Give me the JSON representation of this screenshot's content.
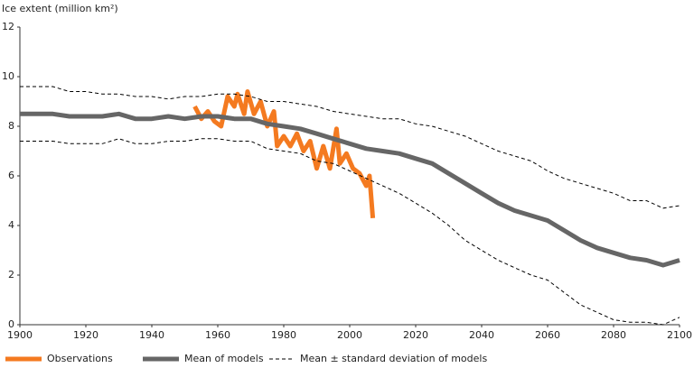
{
  "chart_data": {
    "type": "line",
    "y_label": "Ice extent (million km²)",
    "xlim": [
      1900,
      2100
    ],
    "xticks": [
      1900,
      1920,
      1940,
      1960,
      1980,
      2000,
      2020,
      2040,
      2060,
      2080,
      2100
    ],
    "ylim": [
      0,
      12
    ],
    "yticks": [
      0,
      2,
      4,
      6,
      8,
      10,
      12
    ],
    "grid": false,
    "x": [
      1900,
      1905,
      1910,
      1915,
      1920,
      1925,
      1930,
      1935,
      1940,
      1945,
      1950,
      1955,
      1960,
      1965,
      1970,
      1975,
      1980,
      1985,
      1990,
      1995,
      2000,
      2005,
      2010,
      2015,
      2020,
      2025,
      2030,
      2035,
      2040,
      2045,
      2050,
      2055,
      2060,
      2065,
      2070,
      2075,
      2080,
      2085,
      2090,
      2095,
      2100
    ],
    "series": [
      {
        "name": "Observations",
        "color": "#f47a20",
        "x": [
          1953,
          1955,
          1957,
          1959,
          1961,
          1963,
          1965,
          1966,
          1968,
          1969,
          1971,
          1973,
          1975,
          1977,
          1978,
          1980,
          1982,
          1984,
          1986,
          1988,
          1990,
          1992,
          1994,
          1996,
          1997,
          1999,
          2001,
          2003,
          2005,
          2006,
          2007
        ],
        "values": [
          8.8,
          8.3,
          8.6,
          8.2,
          8.0,
          9.2,
          8.8,
          9.3,
          8.5,
          9.4,
          8.5,
          9.0,
          8.0,
          8.6,
          7.2,
          7.6,
          7.2,
          7.7,
          7.0,
          7.4,
          6.3,
          7.2,
          6.3,
          7.9,
          6.5,
          6.9,
          6.3,
          6.1,
          5.6,
          6.0,
          4.3
        ]
      },
      {
        "name": "Mean of models",
        "color": "#666666",
        "values": [
          8.5,
          8.5,
          8.5,
          8.4,
          8.4,
          8.4,
          8.5,
          8.3,
          8.3,
          8.4,
          8.3,
          8.4,
          8.4,
          8.3,
          8.3,
          8.1,
          8.0,
          7.9,
          7.7,
          7.5,
          7.3,
          7.1,
          7.0,
          6.9,
          6.7,
          6.5,
          6.1,
          5.7,
          5.3,
          4.9,
          4.6,
          4.4,
          4.2,
          3.8,
          3.4,
          3.1,
          2.9,
          2.7,
          2.6,
          2.4,
          2.6
        ]
      },
      {
        "name": "Mean ± standard deviation of models",
        "color": "#000000",
        "dash": true,
        "upper": [
          9.6,
          9.6,
          9.6,
          9.4,
          9.4,
          9.3,
          9.3,
          9.2,
          9.2,
          9.1,
          9.2,
          9.2,
          9.3,
          9.3,
          9.2,
          9.0,
          9.0,
          8.9,
          8.8,
          8.6,
          8.5,
          8.4,
          8.3,
          8.3,
          8.1,
          8.0,
          7.8,
          7.6,
          7.3,
          7.0,
          6.8,
          6.6,
          6.2,
          5.9,
          5.7,
          5.5,
          5.3,
          5.0,
          5.0,
          4.7,
          4.8
        ],
        "lower": [
          7.4,
          7.4,
          7.4,
          7.3,
          7.3,
          7.3,
          7.5,
          7.3,
          7.3,
          7.4,
          7.4,
          7.5,
          7.5,
          7.4,
          7.4,
          7.1,
          7.0,
          6.9,
          6.6,
          6.5,
          6.2,
          5.9,
          5.6,
          5.3,
          4.9,
          4.5,
          4.0,
          3.4,
          3.0,
          2.6,
          2.3,
          2.0,
          1.8,
          1.3,
          0.8,
          0.5,
          0.2,
          0.1,
          0.1,
          0.0,
          0.3
        ]
      }
    ]
  }
}
